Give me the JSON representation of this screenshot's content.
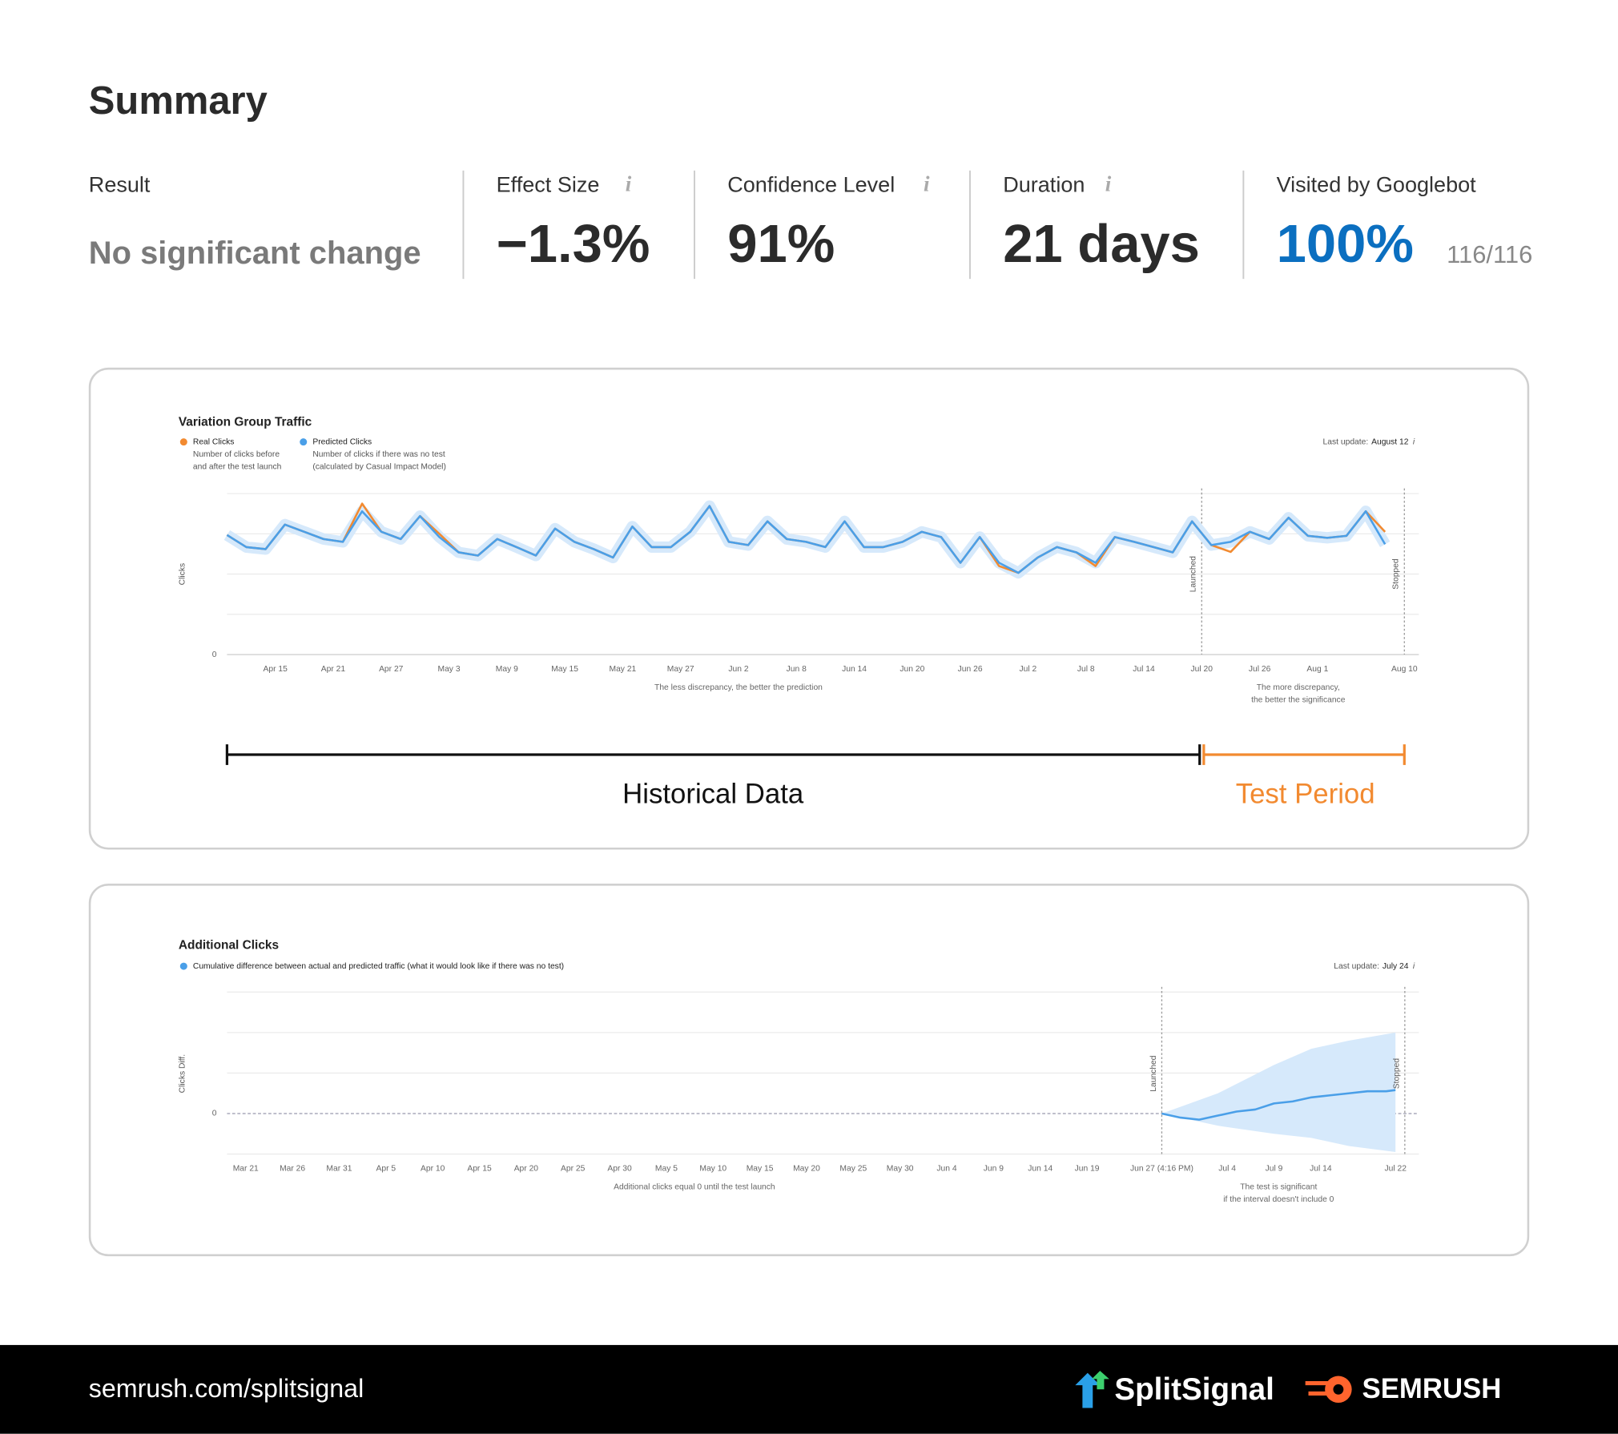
{
  "summary": {
    "title": "Summary",
    "metrics": [
      {
        "label": "Result",
        "value": "No significant change"
      },
      {
        "label": "Effect Size",
        "value": "−1.3%"
      },
      {
        "label": "Confidence Level",
        "value": "91%"
      },
      {
        "label": "Duration",
        "value": "21 days"
      },
      {
        "label": "Visited by Googlebot",
        "value": "100%",
        "detail": "116/116"
      }
    ]
  },
  "chart_data": [
    {
      "type": "line",
      "title": "Variation Group Traffic",
      "last_update": {
        "label": "Last update:",
        "value": "August 12"
      },
      "y_label": "Clicks",
      "x": [
        0,
        2,
        4,
        6,
        8,
        10,
        12,
        14,
        16,
        18,
        20,
        22,
        24,
        26,
        28,
        30,
        32,
        34,
        36,
        38,
        40,
        42,
        44,
        46,
        48,
        50,
        52,
        54,
        56,
        58,
        60,
        62,
        64,
        66,
        68,
        70,
        72,
        74,
        76,
        78,
        80,
        82,
        84,
        86,
        88,
        90,
        92,
        94,
        96,
        98,
        100,
        102,
        104,
        106,
        108,
        110,
        112,
        114,
        116,
        118,
        120
      ],
      "series": [
        {
          "name": "Real Clicks",
          "color": "#f28a30",
          "description": [
            "Number of clicks before",
            "and after the test launch"
          ],
          "values": [
            2.97,
            2.67,
            2.62,
            3.23,
            3.05,
            2.87,
            2.8,
            3.75,
            3.05,
            2.87,
            3.44,
            3.0,
            2.54,
            2.46,
            2.87,
            2.67,
            2.46,
            3.13,
            2.8,
            2.62,
            2.41,
            3.18,
            2.67,
            2.67,
            3.05,
            3.69,
            2.8,
            2.72,
            3.31,
            2.87,
            2.8,
            2.67,
            3.31,
            2.67,
            2.67,
            2.8,
            3.05,
            2.92,
            2.28,
            2.92,
            2.2,
            2.03,
            2.41,
            2.67,
            2.54,
            2.2,
            2.92,
            2.8,
            2.67,
            2.54,
            3.31,
            2.72,
            2.55,
            3.05,
            2.87,
            3.4,
            2.95,
            2.9,
            2.95,
            3.56,
            3.05
          ]
        },
        {
          "name": "Predicted Clicks",
          "color": "#4a9fe8",
          "description": [
            "Number of clicks if there was no test",
            "(calculated by Casual Impact Model)"
          ],
          "values": [
            2.97,
            2.67,
            2.62,
            3.23,
            3.05,
            2.87,
            2.8,
            3.56,
            3.05,
            2.87,
            3.44,
            2.92,
            2.54,
            2.46,
            2.87,
            2.67,
            2.46,
            3.13,
            2.8,
            2.62,
            2.41,
            3.18,
            2.67,
            2.67,
            3.05,
            3.69,
            2.8,
            2.72,
            3.31,
            2.87,
            2.8,
            2.67,
            3.31,
            2.67,
            2.67,
            2.8,
            3.05,
            2.92,
            2.28,
            2.92,
            2.28,
            2.03,
            2.41,
            2.67,
            2.54,
            2.28,
            2.92,
            2.8,
            2.67,
            2.54,
            3.31,
            2.72,
            2.8,
            3.05,
            2.87,
            3.4,
            2.95,
            2.9,
            2.95,
            3.56,
            2.74
          ]
        }
      ],
      "xlim": [
        0,
        123.5
      ],
      "xticks": [
        {
          "value": 5,
          "label": "Apr 15"
        },
        {
          "value": 11,
          "label": "Apr 21"
        },
        {
          "value": 17,
          "label": "Apr 27"
        },
        {
          "value": 23,
          "label": "May 3"
        },
        {
          "value": 29,
          "label": "May 9"
        },
        {
          "value": 35,
          "label": "May 15"
        },
        {
          "value": 41,
          "label": "May 21"
        },
        {
          "value": 47,
          "label": "May 27"
        },
        {
          "value": 53,
          "label": "Jun 2"
        },
        {
          "value": 59,
          "label": "Jun 8"
        },
        {
          "value": 65,
          "label": "Jun 14"
        },
        {
          "value": 71,
          "label": "Jun 20"
        },
        {
          "value": 77,
          "label": "Jun 26"
        },
        {
          "value": 83,
          "label": "Jul 2"
        },
        {
          "value": 89,
          "label": "Jul 8"
        },
        {
          "value": 95,
          "label": "Jul 14"
        },
        {
          "value": 101,
          "label": "Jul 20"
        },
        {
          "value": 107,
          "label": "Jul 26"
        },
        {
          "value": 113,
          "label": "Aug 1"
        },
        {
          "value": 122,
          "label": "Aug 10"
        }
      ],
      "ylim": [
        0,
        4
      ],
      "yticks": [
        0
      ],
      "gridlines": [
        1,
        2,
        3,
        4
      ],
      "markers": [
        {
          "label": "Launched",
          "x": 101
        },
        {
          "label": "Stopped",
          "x": 122
        }
      ],
      "notes": [
        {
          "x": 53,
          "lines": [
            "The less discrepancy, the better the prediction"
          ]
        },
        {
          "x": 111,
          "lines": [
            "The more discrepancy,",
            "the better the significance"
          ]
        }
      ]
    },
    {
      "type": "line",
      "title": "Additional Clicks",
      "last_update": {
        "label": "Last update:",
        "value": "July 24"
      },
      "y_label": "Clicks Diff.",
      "x": [
        98,
        100,
        102,
        104,
        106,
        108,
        110,
        112,
        114,
        116,
        118,
        120,
        122,
        123
      ],
      "series": [
        {
          "name": "Cumulative difference between actual and predicted traffic (what it would look like if there was no test)",
          "color": "#4a9fe8",
          "values": [
            0,
            -0.1,
            -0.15,
            -0.05,
            0.05,
            0.1,
            0.25,
            0.3,
            0.4,
            0.45,
            0.5,
            0.55,
            0.55,
            0.58
          ]
        }
      ],
      "interval": {
        "x": [
          98,
          104,
          110,
          114,
          118,
          123
        ],
        "lower": [
          0,
          -0.3,
          -0.5,
          -0.6,
          -0.8,
          -0.95
        ],
        "upper": [
          0,
          0.5,
          1.2,
          1.6,
          1.8,
          2.0
        ],
        "color": "#d6e9fb"
      },
      "xlim": [
        -2,
        125.5
      ],
      "xticks": [
        {
          "value": 0,
          "label": "Mar 21"
        },
        {
          "value": 5,
          "label": "Mar 26"
        },
        {
          "value": 10,
          "label": "Mar 31"
        },
        {
          "value": 15,
          "label": "Apr 5"
        },
        {
          "value": 20,
          "label": "Apr 10"
        },
        {
          "value": 25,
          "label": "Apr 15"
        },
        {
          "value": 30,
          "label": "Apr 20"
        },
        {
          "value": 35,
          "label": "Apr 25"
        },
        {
          "value": 40,
          "label": "Apr 30"
        },
        {
          "value": 45,
          "label": "May 5"
        },
        {
          "value": 50,
          "label": "May 10"
        },
        {
          "value": 55,
          "label": "May 15"
        },
        {
          "value": 60,
          "label": "May 20"
        },
        {
          "value": 65,
          "label": "May 25"
        },
        {
          "value": 70,
          "label": "May 30"
        },
        {
          "value": 75,
          "label": "Jun 4"
        },
        {
          "value": 80,
          "label": "Jun 9"
        },
        {
          "value": 85,
          "label": "Jun 14"
        },
        {
          "value": 90,
          "label": "Jun 19"
        },
        {
          "value": 98,
          "label": "Jun 27 (4:16 PM)"
        },
        {
          "value": 105,
          "label": "Jul 4"
        },
        {
          "value": 110,
          "label": "Jul 9"
        },
        {
          "value": 115,
          "label": "Jul 14"
        },
        {
          "value": 123,
          "label": "Jul 22"
        }
      ],
      "ylim": [
        -1,
        3
      ],
      "yticks": [
        0
      ],
      "gridlines": [
        -1,
        1,
        2,
        3
      ],
      "markers": [
        {
          "label": "Launched",
          "x": 98
        },
        {
          "label": "Stopped",
          "x": 124
        }
      ],
      "notes": [
        {
          "x": 48,
          "lines": [
            "Additional clicks equal 0 until the test launch"
          ]
        },
        {
          "x": 110.5,
          "lines": [
            "The test is significant",
            "if the interval doesn't include 0"
          ]
        }
      ]
    }
  ],
  "periods": {
    "historical": "Historical Data",
    "test": "Test Period"
  },
  "footer": {
    "url": "semrush.com/splitsignal",
    "brands": [
      "SplitSignal",
      "SEMRUSH"
    ]
  }
}
